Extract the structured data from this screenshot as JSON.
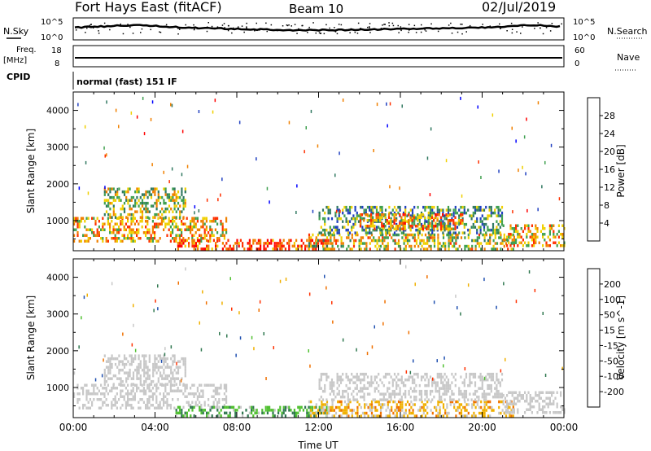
{
  "header": {
    "station": "Fort Hays East (fitACF)",
    "beam": "Beam 10",
    "date": "02/Jul/2019"
  },
  "top_panel": {
    "nsky_label": "N.Sky",
    "nsearch_label": "N.Search",
    "freq_label_1": "Freq.",
    "freq_label_2": "[MHz]",
    "nave_label": "Nave",
    "cpid_label": "CPID",
    "cpid_text": "normal (fast) 151 IF",
    "noise_ticks": [
      "10^5",
      "10^0"
    ],
    "freq_ticks": [
      "18",
      "8"
    ],
    "nave_ticks": [
      "60",
      "0"
    ]
  },
  "chart_data": [
    {
      "type": "heatmap",
      "title": "",
      "xlabel": "",
      "ylabel": "Slant Range [km]",
      "xlim_hours": [
        0,
        24
      ],
      "ylim_km": [
        180,
        4500
      ],
      "x_tick_labels": [
        "00:00",
        "04:00",
        "08:00",
        "12:00",
        "16:00",
        "20:00",
        "00:00"
      ],
      "y_ticks": [
        1000,
        2000,
        3000,
        4000
      ],
      "colorbar": {
        "label": "Power [dB]",
        "ticks": [
          "4",
          "8",
          "12",
          "16",
          "20",
          "24",
          "28"
        ],
        "colors": [
          "#0000ff",
          "#2040c0",
          "#307860",
          "#40a050",
          "#f0d000",
          "#f08000",
          "#ff3000",
          "#ff0000"
        ]
      },
      "regions": [
        {
          "t0": 0.0,
          "t1": 7.5,
          "r0": 450,
          "r1": 1100,
          "level": 20
        },
        {
          "t0": 1.5,
          "t1": 5.5,
          "r0": 1100,
          "r1": 1900,
          "level": 16
        },
        {
          "t0": 5.0,
          "t1": 12.5,
          "r0": 200,
          "r1": 500,
          "level": 26
        },
        {
          "t0": 11.5,
          "t1": 21.5,
          "r0": 200,
          "r1": 650,
          "level": 18
        },
        {
          "t0": 12.0,
          "t1": 21.0,
          "r0": 700,
          "r1": 1400,
          "level": 12
        },
        {
          "t0": 14.0,
          "t1": 19.0,
          "r0": 750,
          "r1": 1200,
          "level": 22
        },
        {
          "t0": 21.0,
          "t1": 24.0,
          "r0": 300,
          "r1": 900,
          "level": 20
        }
      ]
    },
    {
      "type": "heatmap",
      "title": "",
      "xlabel": "Time UT",
      "ylabel": "Slant Range [km]",
      "xlim_hours": [
        0,
        24
      ],
      "ylim_km": [
        180,
        4500
      ],
      "x_tick_labels": [
        "00:00",
        "04:00",
        "08:00",
        "12:00",
        "16:00",
        "20:00",
        "00:00"
      ],
      "y_ticks": [
        1000,
        2000,
        3000,
        4000
      ],
      "colorbar": {
        "label": "Velocity [m s^-1]",
        "ticks": [
          "200",
          "100",
          "50",
          "15",
          "-15",
          "-50",
          "-100",
          "-200"
        ],
        "colors": [
          "#0000e0",
          "#2050b0",
          "#307850",
          "#50c030",
          "#c8c8c8",
          "#f0b000",
          "#f07000",
          "#ff3000",
          "#ff0000"
        ]
      },
      "regions": [
        {
          "t0": 0.0,
          "t1": 7.5,
          "r0": 450,
          "r1": 1100,
          "level": 0
        },
        {
          "t0": 1.5,
          "t1": 5.5,
          "r0": 1100,
          "r1": 1900,
          "level": 0
        },
        {
          "t0": 5.0,
          "t1": 12.5,
          "r0": 200,
          "r1": 500,
          "level": 40
        },
        {
          "t0": 11.5,
          "t1": 21.5,
          "r0": 200,
          "r1": 650,
          "level": -30
        },
        {
          "t0": 12.0,
          "t1": 21.0,
          "r0": 700,
          "r1": 1400,
          "level": 0
        },
        {
          "t0": 21.0,
          "t1": 24.0,
          "r0": 300,
          "r1": 900,
          "level": 0
        }
      ]
    }
  ]
}
